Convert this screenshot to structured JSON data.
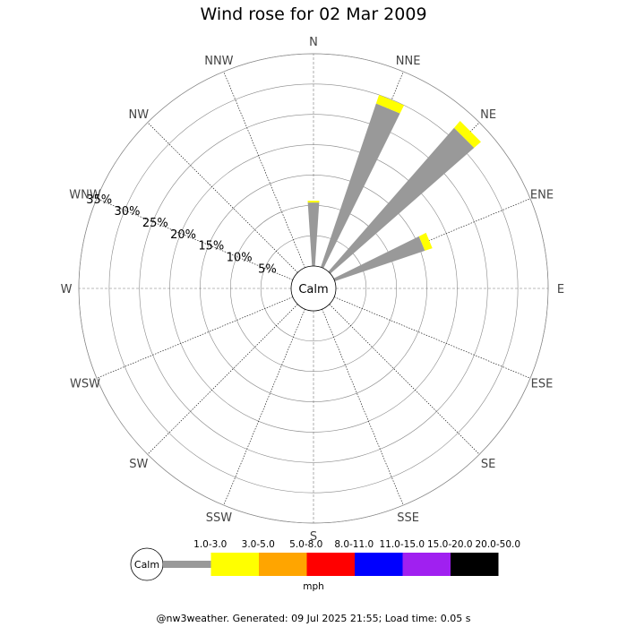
{
  "chart_data": {
    "type": "wind-rose",
    "title": "Wind rose for 02 Mar 2009",
    "directions": [
      "N",
      "NNE",
      "NE",
      "ENE",
      "E",
      "ESE",
      "SE",
      "SSE",
      "S",
      "SSW",
      "SW",
      "WSW",
      "W",
      "WNW",
      "NW",
      "NNW"
    ],
    "radial_ticks": [
      "5%",
      "10%",
      "15%",
      "20%",
      "25%",
      "30%",
      "35%"
    ],
    "radial_max": 35,
    "grid": true,
    "center_label": "Calm",
    "calm_percent": 0,
    "speed_bins": [
      {
        "label": "1.0-3.0",
        "color": "#999999"
      },
      {
        "label": "3.0-5.0",
        "color": "#ffff00"
      },
      {
        "label": "5.0-8.0",
        "color": "#ffa500"
      },
      {
        "label": "8.0-11.0",
        "color": "#ff0000"
      },
      {
        "label": "11.0-15.0",
        "color": "#0000ff"
      },
      {
        "label": "15.0-20.0",
        "color": "#a020f0"
      },
      {
        "label": "20.0-50.0",
        "color": "#000000"
      }
    ],
    "legend_unit": "mph",
    "series": [
      {
        "direction": "N",
        "values": [
          10.5,
          0.3,
          0,
          0,
          0,
          0,
          0
        ]
      },
      {
        "direction": "NNE",
        "values": [
          28.5,
          1.5,
          0,
          0,
          0,
          0,
          0
        ]
      },
      {
        "direction": "NE",
        "values": [
          31.5,
          1.5,
          0,
          0,
          0,
          0,
          0
        ]
      },
      {
        "direction": "ENE",
        "values": [
          15.7,
          1.3,
          0,
          0,
          0,
          0,
          0
        ]
      },
      {
        "direction": "E",
        "values": [
          0,
          0,
          0,
          0,
          0,
          0,
          0
        ]
      },
      {
        "direction": "ESE",
        "values": [
          0,
          0,
          0,
          0,
          0,
          0,
          0
        ]
      },
      {
        "direction": "SE",
        "values": [
          0,
          0,
          0,
          0,
          0,
          0,
          0
        ]
      },
      {
        "direction": "SSE",
        "values": [
          0,
          0,
          0,
          0,
          0,
          0,
          0
        ]
      },
      {
        "direction": "S",
        "values": [
          0,
          0,
          0,
          0,
          0,
          0,
          0
        ]
      },
      {
        "direction": "SSW",
        "values": [
          0,
          0,
          0,
          0,
          0,
          0,
          0
        ]
      },
      {
        "direction": "SW",
        "values": [
          0,
          0,
          0,
          0,
          0,
          0,
          0
        ]
      },
      {
        "direction": "WSW",
        "values": [
          0,
          0,
          0,
          0,
          0,
          0,
          0
        ]
      },
      {
        "direction": "W",
        "values": [
          0,
          0,
          0,
          0,
          0,
          0,
          0
        ]
      },
      {
        "direction": "WNW",
        "values": [
          0,
          0,
          0,
          0,
          0,
          0,
          0
        ]
      },
      {
        "direction": "NW",
        "values": [
          0,
          0,
          0,
          0,
          0,
          0,
          0
        ]
      },
      {
        "direction": "NNW",
        "values": [
          0,
          0,
          0,
          0,
          0,
          0,
          0
        ]
      }
    ]
  },
  "footer": "@nw3weather. Generated: 09 Jul 2025 21:55; Load time: 0.05 s"
}
